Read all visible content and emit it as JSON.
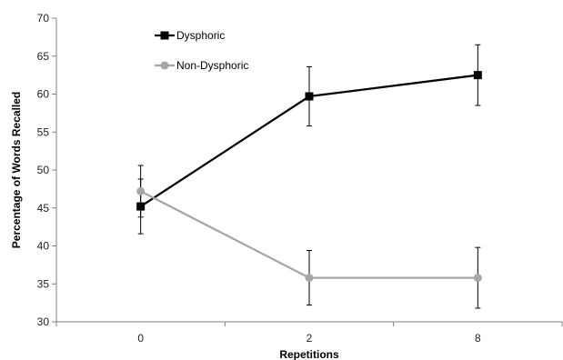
{
  "chart_data": {
    "type": "line",
    "title": "",
    "xlabel": "Repetitions",
    "ylabel": "Percentage of Words Recalled",
    "categories": [
      "0",
      "2",
      "8"
    ],
    "ylim": [
      30,
      70
    ],
    "yticks": [
      30,
      35,
      40,
      45,
      50,
      55,
      60,
      65,
      70
    ],
    "grid": false,
    "legend_position": "top-left",
    "series": [
      {
        "name": "Dysphoric",
        "marker": "square",
        "color": "#000000",
        "values": [
          45.2,
          59.7,
          62.5
        ],
        "error": [
          3.6,
          3.9,
          4.0
        ]
      },
      {
        "name": "Non-Dysphoric",
        "marker": "circle",
        "color": "#a6a6a6",
        "values": [
          47.2,
          35.8,
          35.8
        ],
        "error": [
          3.4,
          3.6,
          4.0
        ]
      }
    ]
  }
}
